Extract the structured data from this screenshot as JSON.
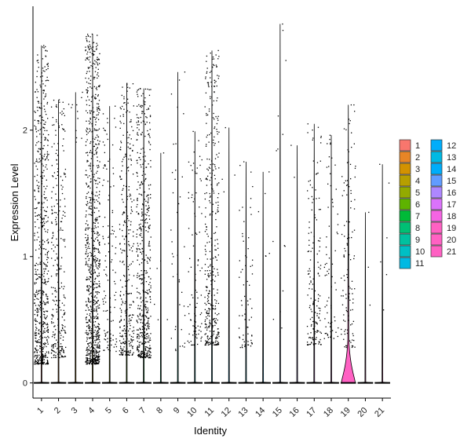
{
  "chart_data": {
    "type": "violin",
    "xlabel": "Identity",
    "ylabel": "Expression Level",
    "ylim": [
      -0.12,
      2.98
    ],
    "yticks": [
      0,
      1,
      2
    ],
    "grid": false,
    "legend_position": "right",
    "categories": [
      "1",
      "2",
      "3",
      "4",
      "5",
      "6",
      "7",
      "8",
      "9",
      "10",
      "11",
      "12",
      "13",
      "14",
      "15",
      "16",
      "17",
      "18",
      "19",
      "20",
      "21"
    ],
    "colors": [
      "#F8766D",
      "#E88526",
      "#D39200",
      "#B79F00",
      "#93AA00",
      "#5EB300",
      "#00BA38",
      "#00BF74",
      "#00C19F",
      "#00BFC4",
      "#00B9E3",
      "#00ADFA",
      "#00B9E3",
      "#00ADFA",
      "#619CFF",
      "#AE87FF",
      "#DB72FB",
      "#F564E3",
      "#FF61C3",
      "#FF61C3",
      "#FF61C3"
    ],
    "max_values": [
      2.67,
      2.24,
      2.3,
      2.76,
      2.19,
      2.37,
      2.33,
      1.82,
      2.46,
      1.99,
      2.63,
      2.02,
      1.75,
      1.67,
      2.84,
      1.88,
      2.05,
      1.96,
      2.2,
      1.35,
      1.73
    ],
    "expressing_cells": [
      620,
      280,
      12,
      900,
      120,
      320,
      520,
      6,
      40,
      90,
      380,
      4,
      70,
      6,
      15,
      2,
      160,
      70,
      120,
      3,
      6
    ],
    "point_min": [
      0.15,
      0.2,
      1.9,
      0.15,
      0.25,
      0.22,
      0.2,
      0.5,
      0.25,
      0.3,
      0.3,
      1.5,
      0.28,
      1.0,
      0.4,
      1.6,
      0.3,
      0.35,
      0.28,
      0.6,
      0.25
    ],
    "legend_items": [
      "1",
      "2",
      "3",
      "4",
      "5",
      "6",
      "7",
      "8",
      "9",
      "10",
      "11",
      "12",
      "13",
      "14",
      "15",
      "16",
      "17",
      "18",
      "19",
      "20",
      "21"
    ]
  }
}
